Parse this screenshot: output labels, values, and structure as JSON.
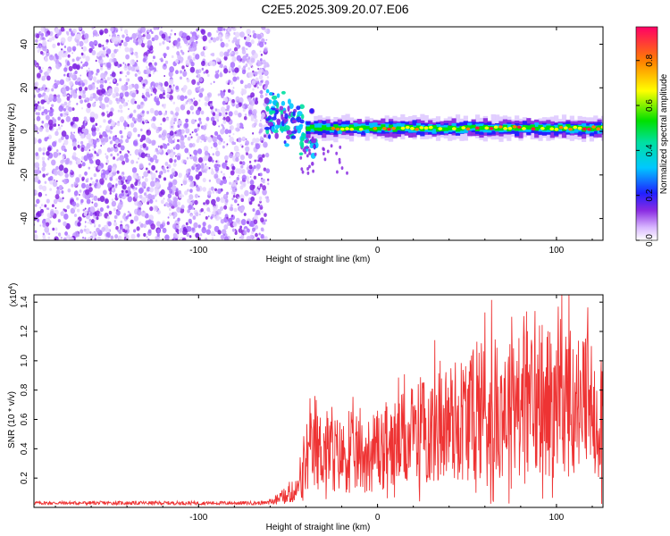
{
  "page_title": "C2E5.2025.309.20.07.E06",
  "colors": {
    "signal_dots": "#8a2be2",
    "snr_line": "#ee3333",
    "frame": "#000000"
  },
  "chart_data": [
    {
      "type": "heatmap",
      "title": "C2E5.2025.309.20.07.E06",
      "xlabel": "Height of straight line (km)",
      "ylabel": "Frequency (Hz)",
      "xlim": [
        -192,
        126
      ],
      "ylim": [
        -50,
        48
      ],
      "xticks": [
        -100,
        0,
        100
      ],
      "yticks": [
        -40,
        -20,
        0,
        20,
        40
      ],
      "colorbar": {
        "label": "Normalized spectral amplitude",
        "range": [
          0,
          0.95
        ],
        "ticks": [
          "0.0",
          "0.2",
          "0.4",
          "0.6",
          "0.8"
        ],
        "tick_values": [
          0,
          0.2,
          0.4,
          0.6,
          0.8
        ]
      },
      "features": {
        "noise_region_km": [
          -192,
          -61
        ],
        "tone_frequency_hz": 1.5,
        "tone_start_km": -60
      }
    },
    {
      "type": "line",
      "xlabel": "Height of straight line (km)",
      "ylabel": "SNR (10 * v/v)",
      "y_exponent_label": "(x10",
      "y_exponent": "4",
      "xlim": [
        -192,
        126
      ],
      "ylim": [
        0,
        1.45
      ],
      "xticks": [
        -100,
        0,
        100
      ],
      "yticks": [
        0.2,
        0.4,
        0.6,
        0.8,
        1.0,
        1.2,
        1.4
      ],
      "ytick_labels": [
        "0.2",
        "0.4",
        "0.6",
        "0.8",
        "1.0",
        "1.2",
        "1.4"
      ],
      "series": [
        {
          "name": "SNR",
          "envelope_x": [
            -192,
            -60,
            -45,
            -38,
            -30,
            -20,
            -10,
            0,
            20,
            40,
            60,
            80,
            100,
            110,
            126
          ],
          "envelope_y": [
            0.03,
            0.03,
            0.12,
            0.35,
            0.4,
            0.35,
            0.35,
            0.38,
            0.48,
            0.58,
            0.66,
            0.7,
            0.72,
            0.7,
            0.66
          ],
          "peak_x": [
            -35,
            0,
            25,
            35,
            58,
            60,
            75,
            88,
            103,
            125
          ],
          "peak_y": [
            0.76,
            0.66,
            0.85,
            1.0,
            1.12,
            1.33,
            1.3,
            1.34,
            1.45,
            1.0
          ]
        }
      ]
    }
  ]
}
